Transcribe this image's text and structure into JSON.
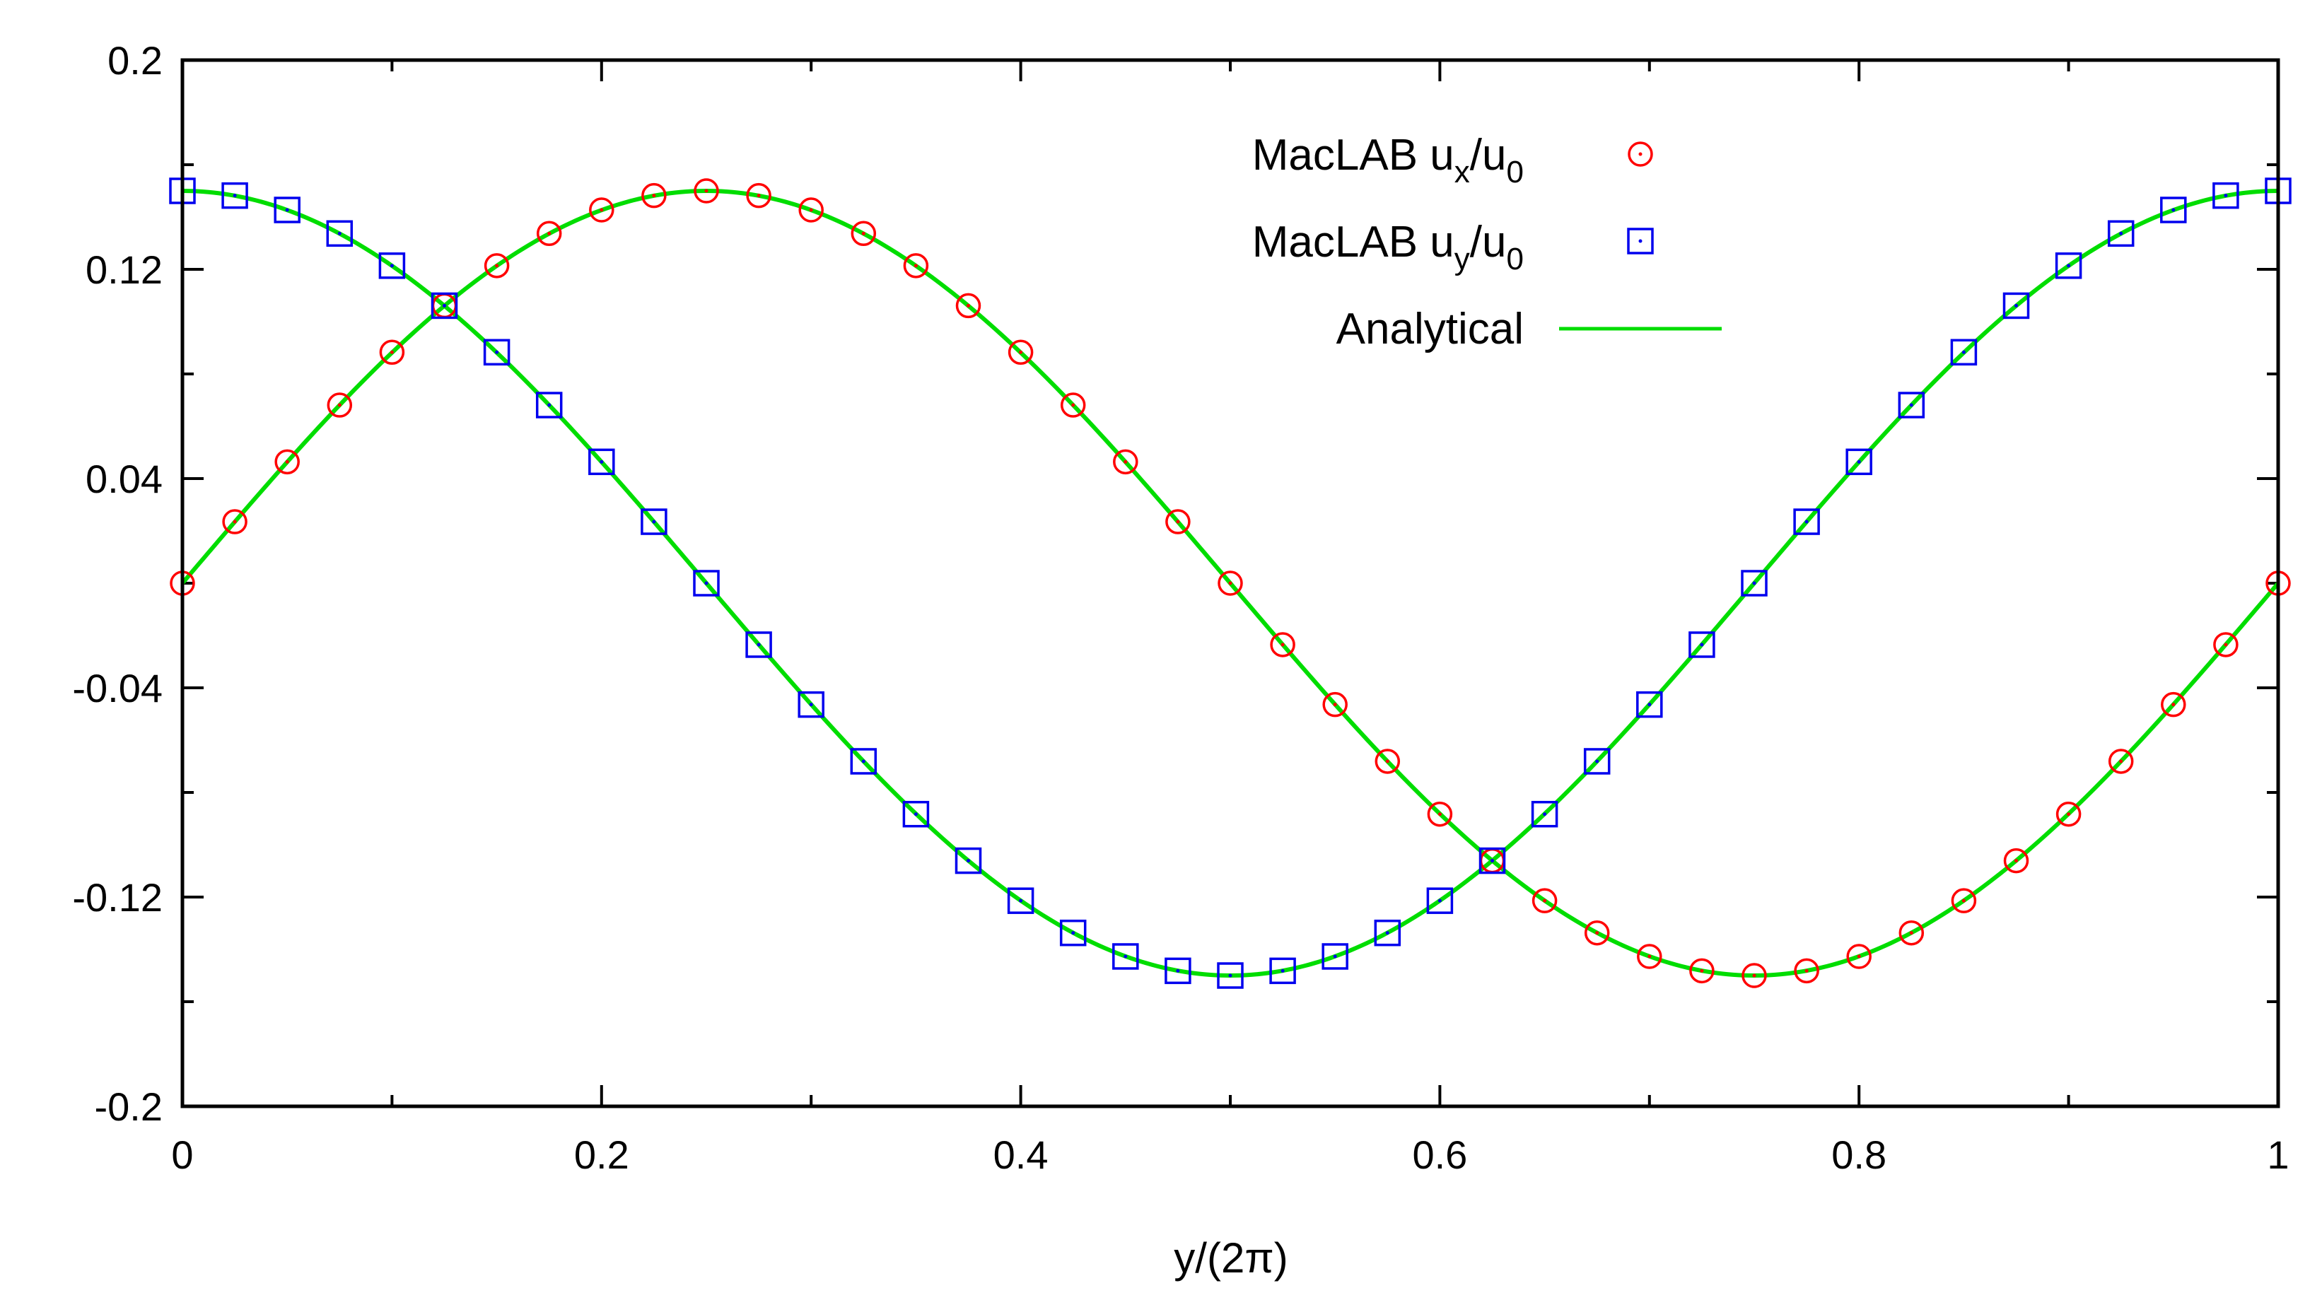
{
  "chart_data": {
    "type": "line",
    "title": "",
    "xlabel": "y/(2π)",
    "ylabel": "",
    "xlim": [
      0,
      1
    ],
    "ylim": [
      -0.2,
      0.2
    ],
    "xticks": [
      "0",
      "0.2",
      "0.4",
      "0.6",
      "0.8",
      "1"
    ],
    "xtick_values": [
      0,
      0.2,
      0.4,
      0.6,
      0.8,
      1
    ],
    "yticks": [
      "0.2",
      "0.12",
      "0.04",
      "-0.04",
      "-0.12",
      "-0.2"
    ],
    "ytick_values": [
      0.2,
      0.12,
      0.04,
      -0.04,
      -0.12,
      -0.2
    ],
    "legend_position": "top-right",
    "colors": {
      "ux": "#ff0000",
      "uy": "#0000ee",
      "analytical": "#00dd00",
      "axis": "#000000"
    },
    "series": [
      {
        "name": "MacLAB ux/u0",
        "legend_main": "MacLAB u",
        "legend_sub1": "x",
        "legend_slash": "/u",
        "legend_sub2": "0",
        "marker": "circle",
        "x": [
          0,
          0.025,
          0.05,
          0.075,
          0.1,
          0.125,
          0.15,
          0.175,
          0.2,
          0.225,
          0.25,
          0.275,
          0.3,
          0.325,
          0.35,
          0.375,
          0.4,
          0.425,
          0.45,
          0.475,
          0.5,
          0.525,
          0.55,
          0.575,
          0.6,
          0.625,
          0.65,
          0.675,
          0.7,
          0.725,
          0.75,
          0.775,
          0.8,
          0.825,
          0.85,
          0.875,
          0.9,
          0.925,
          0.95,
          0.975,
          1
        ],
        "values": [
          0.0,
          0.0235,
          0.0464,
          0.0681,
          0.0883,
          0.1061,
          0.1214,
          0.1337,
          0.1427,
          0.1482,
          0.15,
          0.1482,
          0.1427,
          0.1337,
          0.1214,
          0.1061,
          0.0883,
          0.0681,
          0.0464,
          0.0235,
          0.0,
          -0.0235,
          -0.0464,
          -0.0681,
          -0.0883,
          -0.1061,
          -0.1214,
          -0.1337,
          -0.1427,
          -0.1482,
          -0.15,
          -0.1482,
          -0.1427,
          -0.1337,
          -0.1214,
          -0.1061,
          -0.0883,
          -0.0681,
          -0.0464,
          -0.0235,
          0.0
        ]
      },
      {
        "name": "MacLAB uy/u0",
        "legend_main": "MacLAB u",
        "legend_sub1": "y",
        "legend_slash": "/u",
        "legend_sub2": "0",
        "marker": "square",
        "x": [
          0,
          0.025,
          0.05,
          0.075,
          0.1,
          0.125,
          0.15,
          0.175,
          0.2,
          0.225,
          0.25,
          0.275,
          0.3,
          0.325,
          0.35,
          0.375,
          0.4,
          0.425,
          0.45,
          0.475,
          0.5,
          0.525,
          0.55,
          0.575,
          0.6,
          0.625,
          0.65,
          0.675,
          0.7,
          0.725,
          0.75,
          0.775,
          0.8,
          0.825,
          0.85,
          0.875,
          0.9,
          0.925,
          0.95,
          0.975,
          1
        ],
        "values": [
          0.15,
          0.1482,
          0.1427,
          0.1337,
          0.1214,
          0.1061,
          0.0883,
          0.0681,
          0.0464,
          0.0235,
          0.0,
          -0.0235,
          -0.0464,
          -0.0681,
          -0.0883,
          -0.1061,
          -0.1214,
          -0.1337,
          -0.1427,
          -0.1482,
          -0.15,
          -0.1482,
          -0.1427,
          -0.1337,
          -0.1214,
          -0.1061,
          -0.0883,
          -0.0681,
          -0.0464,
          -0.0235,
          0.0,
          0.0235,
          0.0464,
          0.0681,
          0.0883,
          0.1061,
          0.1214,
          0.1337,
          0.1427,
          0.1482,
          0.15
        ]
      },
      {
        "name": "Analytical",
        "marker": "line",
        "curves": [
          {
            "function": "0.15*sin(2*pi*x)",
            "label": "ux analytical"
          },
          {
            "function": "0.15*cos(2*pi*x)",
            "label": "uy analytical"
          }
        ]
      }
    ]
  }
}
